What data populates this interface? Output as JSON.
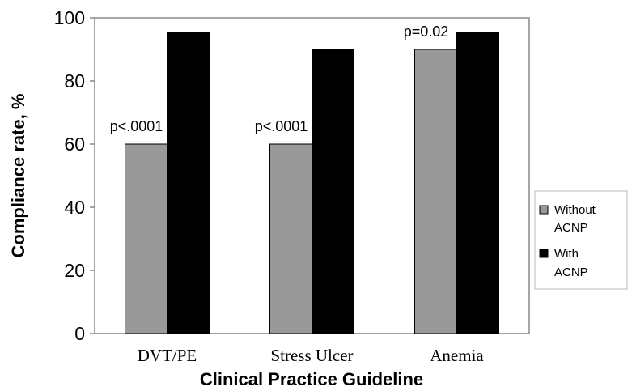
{
  "chart_data": {
    "type": "bar",
    "categories": [
      "DVT/PE",
      "Stress Ulcer",
      "Anemia"
    ],
    "series": [
      {
        "name": [
          "Without",
          "ACNP"
        ],
        "color": "#999999",
        "values": [
          60,
          60,
          90
        ]
      },
      {
        "name": [
          "With",
          "ACNP"
        ],
        "color": "#000000",
        "values": [
          95.5,
          90,
          95.5
        ]
      }
    ],
    "annotations": [
      "p<.0001",
      "p<.0001",
      "p=0.02"
    ],
    "xlabel": "Clinical Practice Guideline",
    "ylabel": "Compliance rate, %",
    "ylim": [
      0,
      100
    ],
    "yticks": [
      0,
      20,
      40,
      60,
      80,
      100
    ],
    "grid": false,
    "legend_position": "right"
  }
}
